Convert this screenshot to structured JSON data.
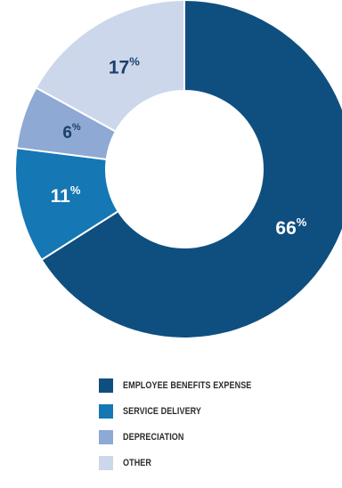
{
  "chart_data": {
    "type": "pie",
    "variant": "donut",
    "title": "",
    "slices": [
      {
        "label": "EMPLOYEE BENEFITS EXPENSE",
        "value": 66,
        "display": "66",
        "color": "#0f4f80"
      },
      {
        "label": "SERVICE DELIVERY",
        "value": 11,
        "display": "11",
        "color": "#1577b4"
      },
      {
        "label": "DEPRECIATION",
        "value": 6,
        "display": "6",
        "color": "#8ea9d3"
      },
      {
        "label": "OTHER",
        "value": 17,
        "display": "17",
        "color": "#ccd7eb"
      }
    ],
    "percent_sign": "%",
    "legend_placement": "bottom",
    "label_colors": {
      "EMPLOYEE BENEFITS EXPENSE": "#ffffff",
      "SERVICE DELIVERY": "#ffffff",
      "DEPRECIATION": "#1c3f6b",
      "OTHER": "#1c3f6b"
    }
  }
}
